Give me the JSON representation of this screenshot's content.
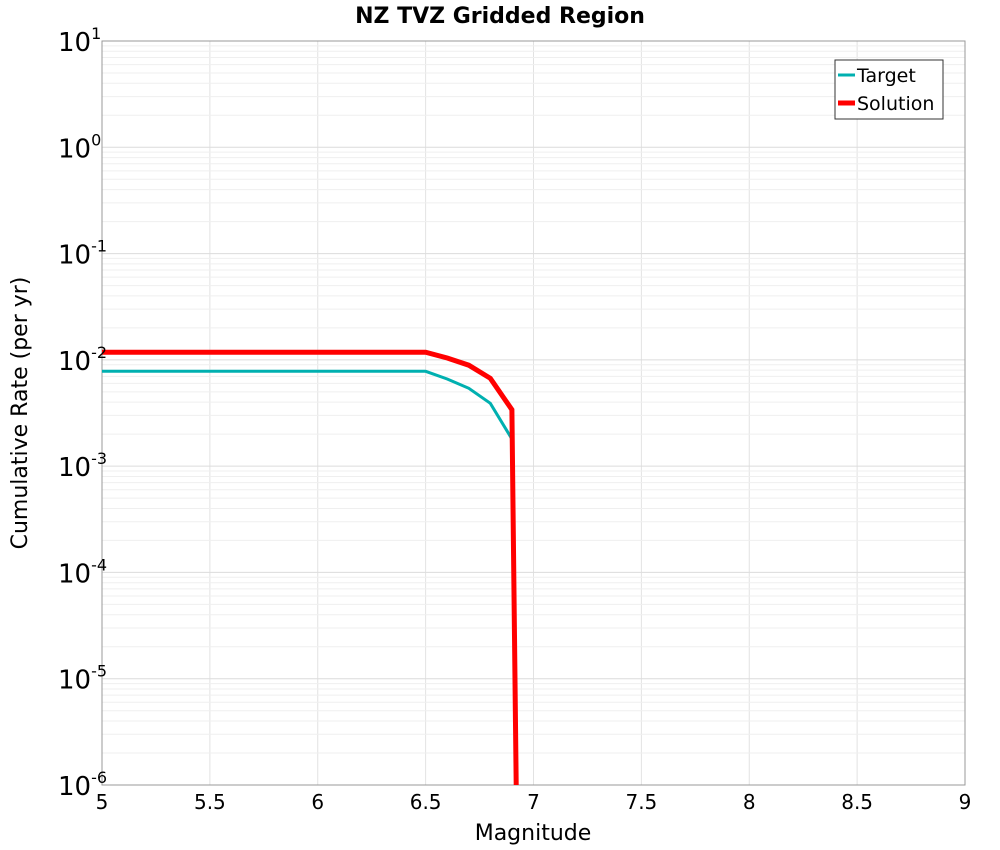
{
  "chart_data": {
    "type": "line",
    "title": "NZ TVZ Gridded Region",
    "xlabel": "Magnitude",
    "ylabel": "Cumulative Rate (per yr)",
    "xlim": [
      5,
      9
    ],
    "ylim": [
      1e-06,
      10
    ],
    "yscale": "log",
    "grid": true,
    "legend": "top-right",
    "x_ticks": [
      "5",
      "5.5",
      "6",
      "6.5",
      "7",
      "7.5",
      "8",
      "8.5",
      "9"
    ],
    "y_ticks": [
      {
        "base": "10",
        "exp": "-6"
      },
      {
        "base": "10",
        "exp": "-5"
      },
      {
        "base": "10",
        "exp": "-4"
      },
      {
        "base": "10",
        "exp": "-3"
      },
      {
        "base": "10",
        "exp": "-2"
      },
      {
        "base": "10",
        "exp": "-1"
      },
      {
        "base": "10",
        "exp": "0"
      },
      {
        "base": "10",
        "exp": "1"
      }
    ],
    "series": [
      {
        "name": "Target",
        "color": "#00b0b0",
        "x": [
          5.0,
          5.5,
          6.0,
          6.5,
          6.6,
          6.7,
          6.8,
          6.9
        ],
        "y": [
          0.0078,
          0.0078,
          0.0078,
          0.0078,
          0.0066,
          0.0054,
          0.0039,
          0.0018
        ]
      },
      {
        "name": "Solution",
        "color": "#ff0000",
        "x": [
          5.0,
          5.5,
          6.0,
          6.5,
          6.6,
          6.7,
          6.8,
          6.9,
          6.92
        ],
        "y": [
          0.0118,
          0.0118,
          0.0118,
          0.0118,
          0.0104,
          0.0089,
          0.0067,
          0.0034,
          1e-06
        ]
      }
    ]
  }
}
